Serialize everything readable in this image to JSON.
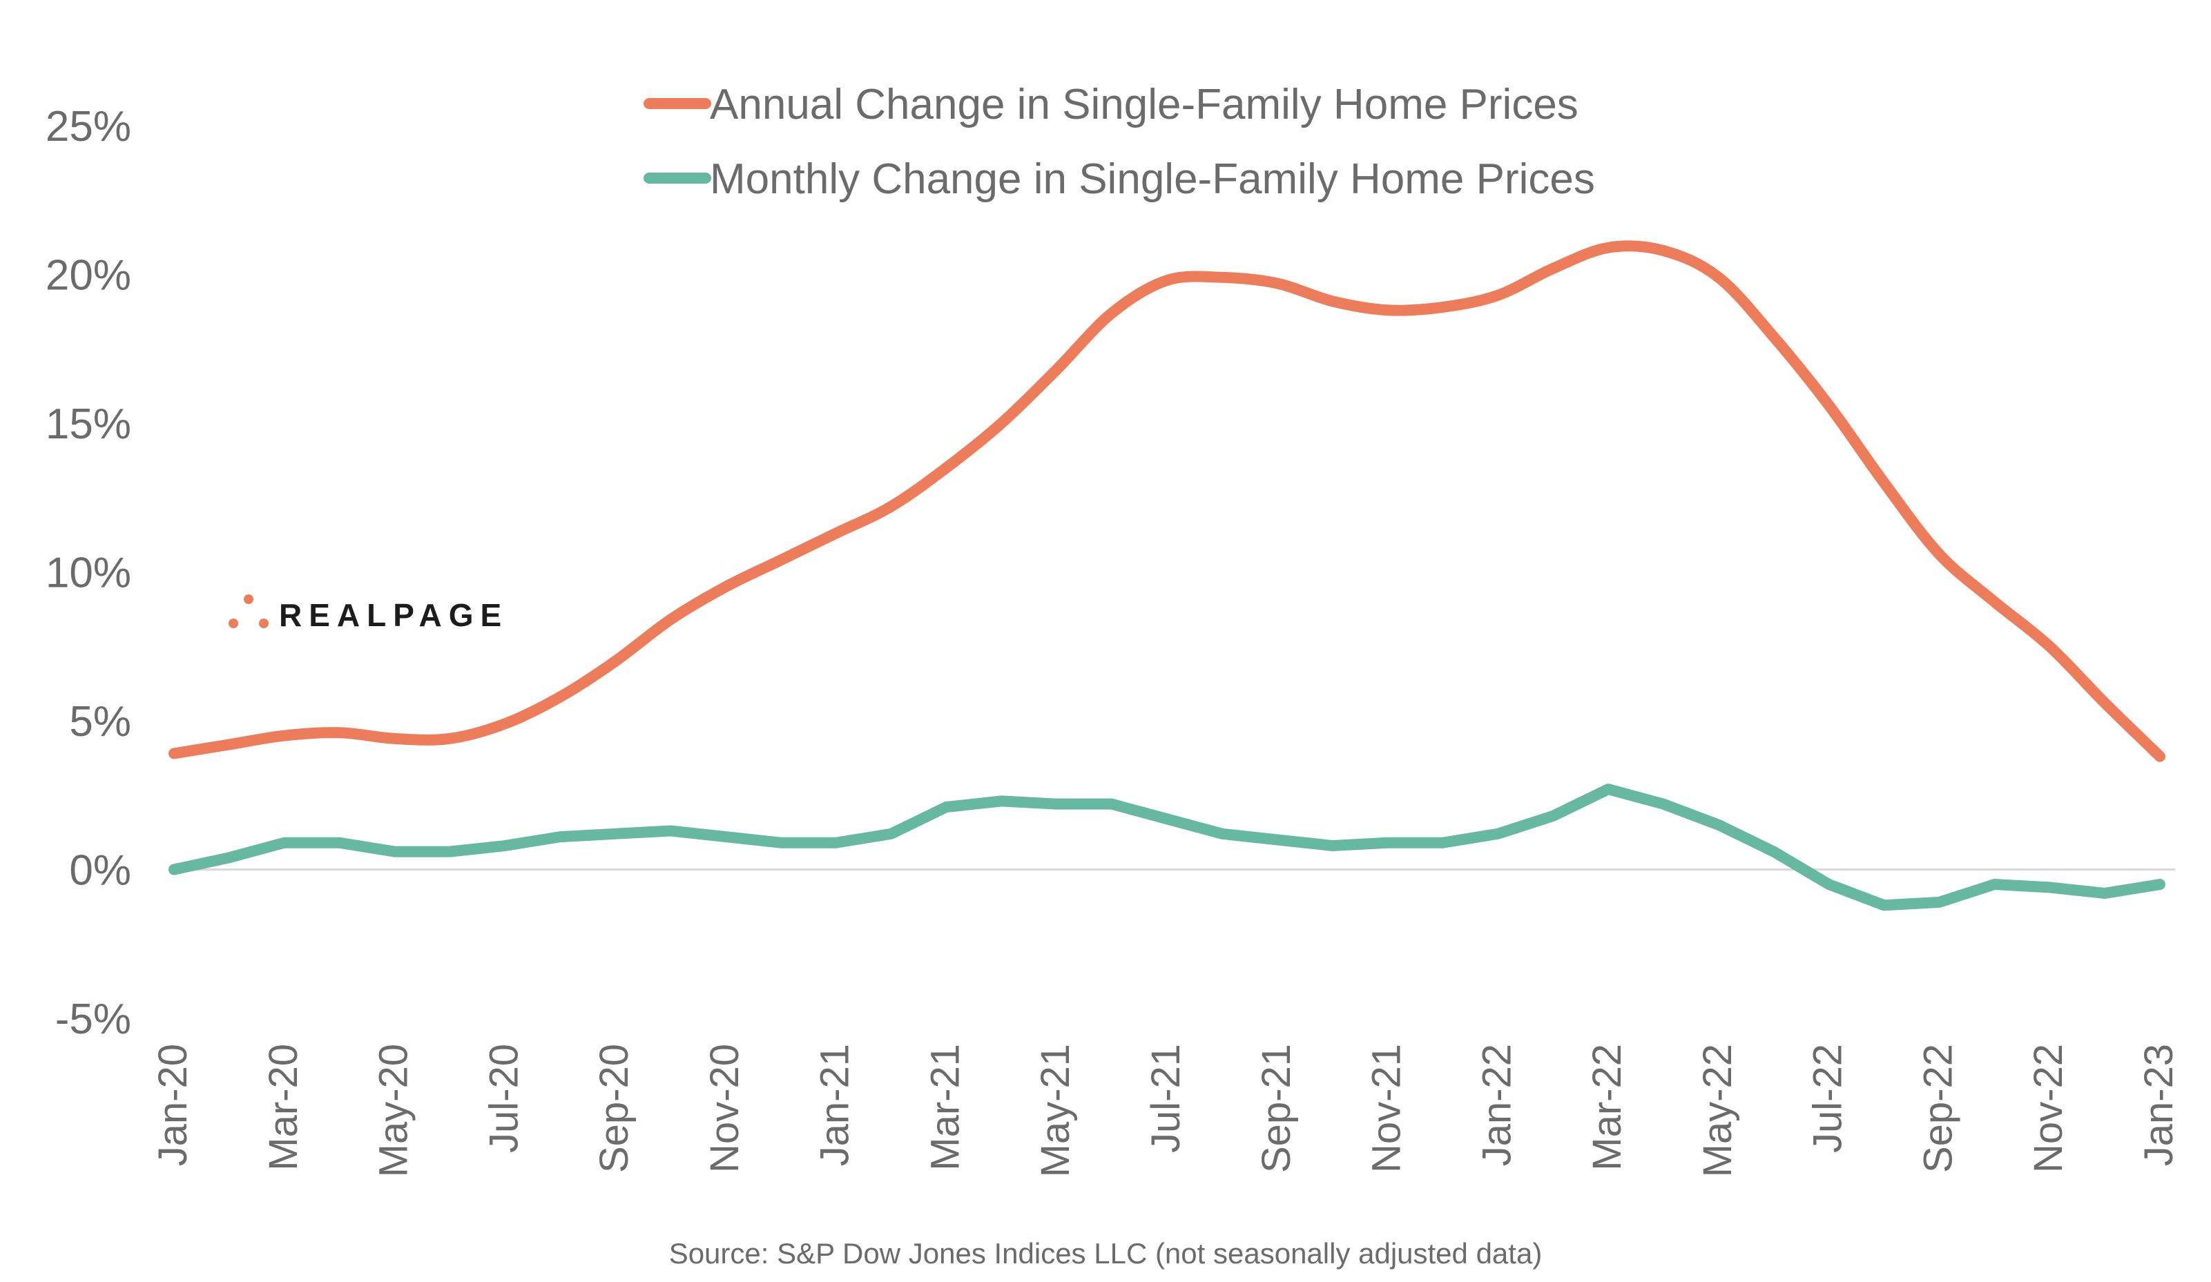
{
  "chart_data": {
    "type": "line",
    "x": [
      "Jan-20",
      "Feb-20",
      "Mar-20",
      "Apr-20",
      "May-20",
      "Jun-20",
      "Jul-20",
      "Aug-20",
      "Sep-20",
      "Oct-20",
      "Nov-20",
      "Dec-20",
      "Jan-21",
      "Feb-21",
      "Mar-21",
      "Apr-21",
      "May-21",
      "Jun-21",
      "Jul-21",
      "Aug-21",
      "Sep-21",
      "Oct-21",
      "Nov-21",
      "Dec-21",
      "Jan-22",
      "Feb-22",
      "Mar-22",
      "Apr-22",
      "May-22",
      "Jun-22",
      "Jul-22",
      "Aug-22",
      "Sep-22",
      "Oct-22",
      "Nov-22",
      "Dec-22",
      "Jan-23"
    ],
    "x_tick_labels": [
      "Jan-20",
      "Mar-20",
      "May-20",
      "Jul-20",
      "Sep-20",
      "Nov-20",
      "Jan-21",
      "Mar-21",
      "May-21",
      "Jul-21",
      "Sep-21",
      "Nov-21",
      "Jan-22",
      "Mar-22",
      "May-22",
      "Jul-22",
      "Sep-22",
      "Nov-22",
      "Jan-23"
    ],
    "y_ticks": [
      -5,
      0,
      5,
      10,
      15,
      20,
      25
    ],
    "y_tick_labels": [
      "-5%",
      "0%",
      "5%",
      "10%",
      "15%",
      "20%",
      "25%"
    ],
    "ylim": [
      -5,
      25
    ],
    "grid": false,
    "legend_position": "top-center",
    "series": [
      {
        "name": "Annual Change in Single-Family Home Prices",
        "color": "#ED7D5A",
        "values": [
          3.9,
          4.2,
          4.5,
          4.6,
          4.4,
          4.4,
          4.9,
          5.8,
          7.0,
          8.4,
          9.5,
          10.4,
          11.3,
          12.2,
          13.5,
          15.0,
          16.8,
          18.7,
          19.8,
          19.9,
          19.7,
          19.1,
          18.8,
          18.9,
          19.3,
          20.2,
          20.9,
          20.8,
          19.9,
          17.9,
          15.6,
          13.0,
          10.6,
          9.0,
          7.5,
          5.6,
          3.8
        ]
      },
      {
        "name": "Monthly Change in Single-Family Home Prices",
        "color": "#66B8A0",
        "values": [
          0.0,
          0.4,
          0.9,
          0.9,
          0.6,
          0.6,
          0.8,
          1.1,
          1.2,
          1.3,
          1.1,
          0.9,
          0.9,
          1.2,
          2.1,
          2.3,
          2.2,
          2.2,
          1.7,
          1.2,
          1.0,
          0.8,
          0.9,
          0.9,
          1.2,
          1.8,
          2.7,
          2.2,
          1.5,
          0.6,
          -0.5,
          -1.2,
          -1.1,
          -0.5,
          -0.6,
          -0.8,
          -0.5
        ]
      }
    ]
  },
  "source_note": "Source: S&P Dow Jones Indices LLC (not seasonally adjusted data)",
  "logo": {
    "text": "REALPAGE",
    "color": "#ED7D5A"
  }
}
